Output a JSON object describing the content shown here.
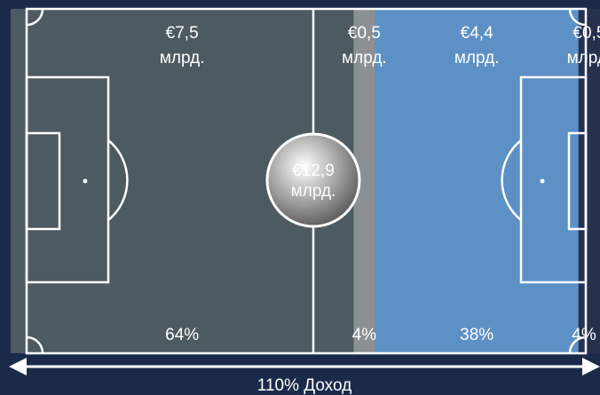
{
  "chart_data": {
    "type": "stacked-bar",
    "values": [
      64,
      4,
      38,
      4
    ],
    "value_labels": [
      "64%",
      "4%",
      "38%",
      "4%"
    ],
    "amount_labels": [
      [
        "€7,5",
        "млрд."
      ],
      [
        "€0,5",
        "млрд."
      ],
      [
        "€4,4",
        "млрд."
      ],
      [
        "€0,5",
        "млрд."
      ]
    ],
    "colors": [
      "#4e5a62",
      "#8c9092",
      "#5d91c6",
      "#27304d"
    ],
    "center_label": [
      "€12,9",
      "млрд."
    ],
    "axis_label": "110% Доход"
  }
}
